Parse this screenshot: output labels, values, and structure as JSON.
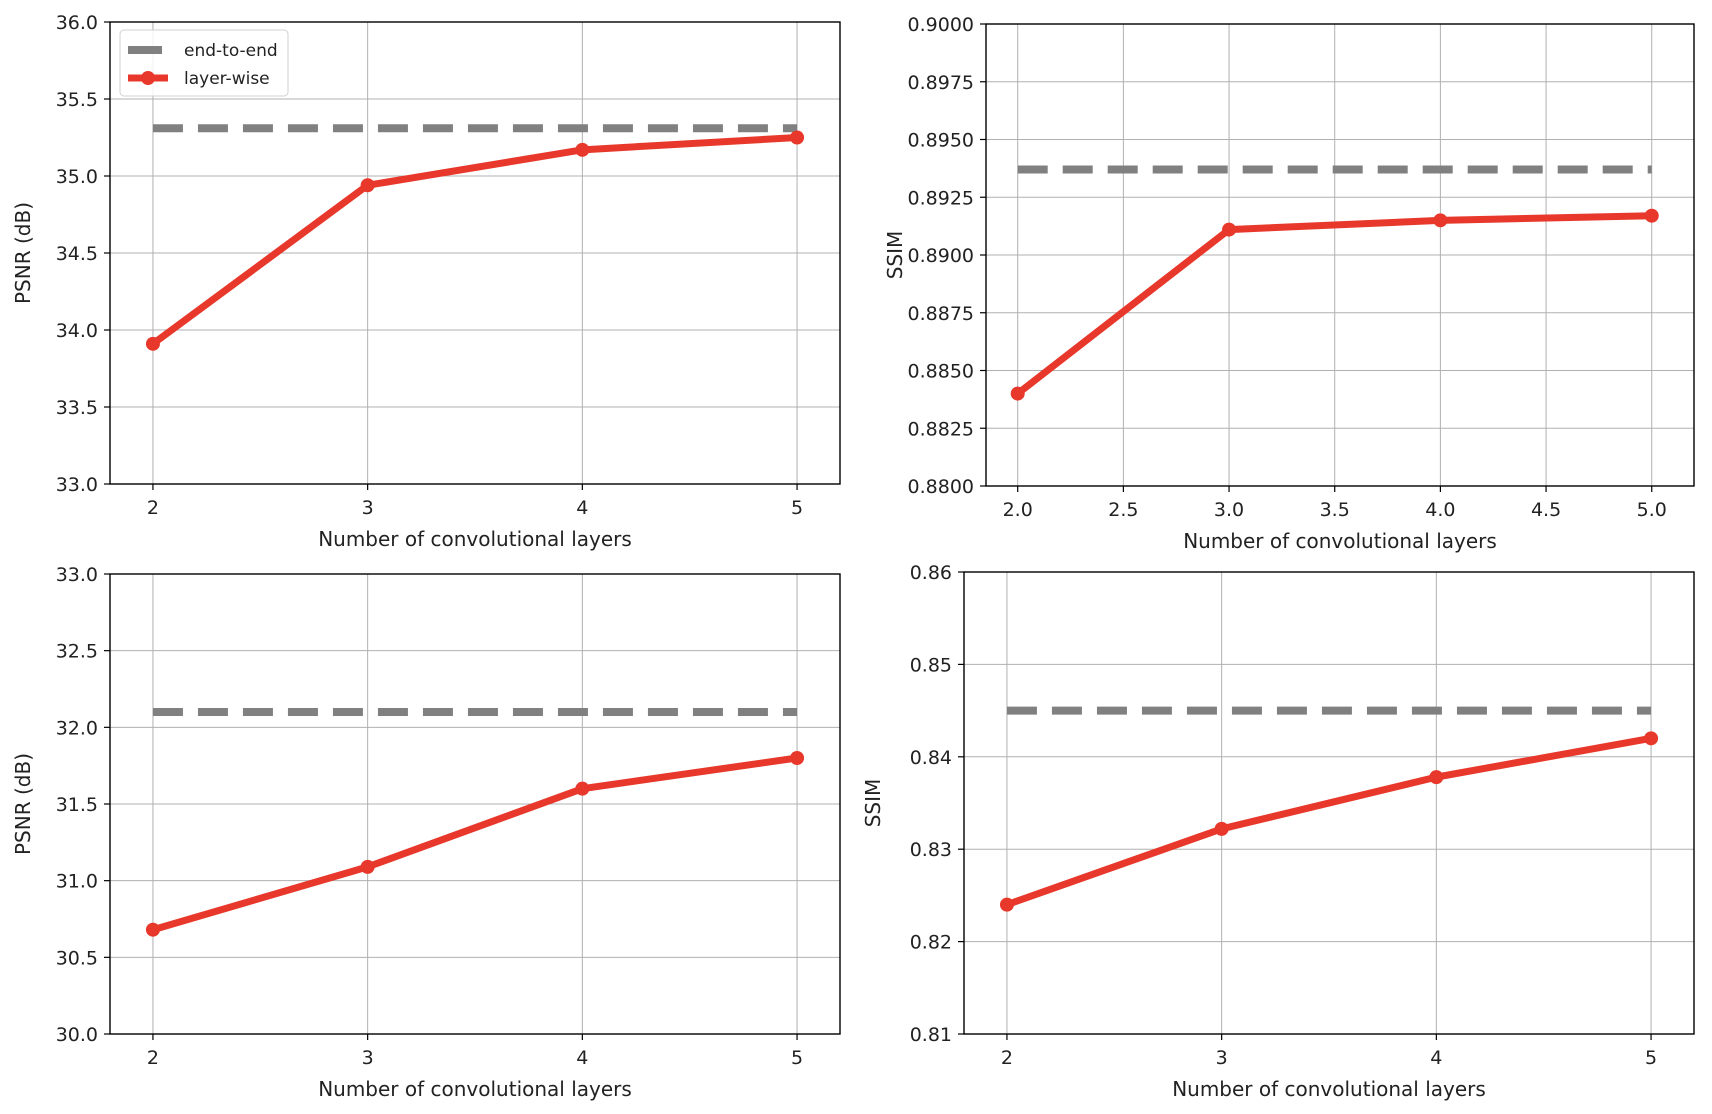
{
  "chart_data": [
    {
      "type": "line",
      "title": "",
      "xlabel": "Number of convolutional layers",
      "ylabel": "PSNR (dB)",
      "x": [
        2,
        3,
        4,
        5
      ],
      "xlim": [
        1.8,
        5.2
      ],
      "ylim": [
        33.0,
        36.0
      ],
      "xticks": [
        2,
        3,
        4,
        5
      ],
      "xtick_labels": [
        "2",
        "3",
        "4",
        "5"
      ],
      "yticks": [
        33.0,
        33.5,
        34.0,
        34.5,
        35.0,
        35.5,
        36.0
      ],
      "ytick_labels": [
        "33.0",
        "33.5",
        "34.0",
        "34.5",
        "35.0",
        "35.5",
        "36.0"
      ],
      "grid": true,
      "legend": "top-left",
      "series": [
        {
          "name": "end-to-end",
          "style": "dashed",
          "color": "#808080",
          "values": [
            35.31,
            35.31,
            35.31,
            35.31
          ]
        },
        {
          "name": "layer-wise",
          "style": "solid-marker",
          "color": "#e8382b",
          "values": [
            33.91,
            34.94,
            35.17,
            35.25
          ]
        }
      ]
    },
    {
      "type": "line",
      "title": "",
      "xlabel": "Number of convolutional layers",
      "ylabel": "SSIM",
      "x": [
        2.0,
        3.0,
        4.0,
        5.0
      ],
      "xlim": [
        1.85,
        5.2
      ],
      "ylim": [
        0.88,
        0.9
      ],
      "xticks": [
        2.0,
        2.5,
        3.0,
        3.5,
        4.0,
        4.5,
        5.0
      ],
      "xtick_labels": [
        "2.0",
        "2.5",
        "3.0",
        "3.5",
        "4.0",
        "4.5",
        "5.0"
      ],
      "yticks": [
        0.88,
        0.8825,
        0.885,
        0.8875,
        0.89,
        0.8925,
        0.895,
        0.8975,
        0.9
      ],
      "ytick_labels": [
        "0.8800",
        "0.8825",
        "0.8850",
        "0.8875",
        "0.8900",
        "0.8925",
        "0.8950",
        "0.8975",
        "0.9000"
      ],
      "grid": true,
      "legend": "none",
      "series": [
        {
          "name": "",
          "style": "dashed",
          "color": "#808080",
          "values": [
            0.8937,
            0.8937,
            0.8937,
            0.8937
          ]
        },
        {
          "name": "",
          "style": "solid-marker",
          "color": "#e8382b",
          "values": [
            0.884,
            0.8911,
            0.8915,
            0.8917
          ]
        }
      ]
    },
    {
      "type": "line",
      "title": "",
      "xlabel": "Number of convolutional layers",
      "ylabel": "PSNR (dB)",
      "x": [
        2,
        3,
        4,
        5
      ],
      "xlim": [
        1.8,
        5.2
      ],
      "ylim": [
        30.0,
        33.0
      ],
      "xticks": [
        2,
        3,
        4,
        5
      ],
      "xtick_labels": [
        "2",
        "3",
        "4",
        "5"
      ],
      "yticks": [
        30.0,
        30.5,
        31.0,
        31.5,
        32.0,
        32.5,
        33.0
      ],
      "ytick_labels": [
        "30.0",
        "30.5",
        "31.0",
        "31.5",
        "32.0",
        "32.5",
        "33.0"
      ],
      "grid": true,
      "legend": "none",
      "series": [
        {
          "name": "",
          "style": "dashed",
          "color": "#808080",
          "values": [
            32.1,
            32.1,
            32.1,
            32.1
          ]
        },
        {
          "name": "",
          "style": "solid-marker",
          "color": "#e8382b",
          "values": [
            30.68,
            31.09,
            31.6,
            31.8
          ]
        }
      ]
    },
    {
      "type": "line",
      "title": "",
      "xlabel": "Number of convolutional layers",
      "ylabel": "SSIM",
      "x": [
        2,
        3,
        4,
        5
      ],
      "xlim": [
        1.8,
        5.2
      ],
      "ylim": [
        0.81,
        0.86
      ],
      "xticks": [
        2,
        3,
        4,
        5
      ],
      "xtick_labels": [
        "2",
        "3",
        "4",
        "5"
      ],
      "yticks": [
        0.81,
        0.82,
        0.83,
        0.84,
        0.85,
        0.86
      ],
      "ytick_labels": [
        "0.81",
        "0.82",
        "0.83",
        "0.84",
        "0.85",
        "0.86"
      ],
      "grid": true,
      "legend": "none",
      "series": [
        {
          "name": "",
          "style": "dashed",
          "color": "#808080",
          "values": [
            0.845,
            0.845,
            0.845,
            0.845
          ]
        },
        {
          "name": "",
          "style": "solid-marker",
          "color": "#e8382b",
          "values": [
            0.824,
            0.8322,
            0.8378,
            0.842
          ]
        }
      ]
    }
  ]
}
